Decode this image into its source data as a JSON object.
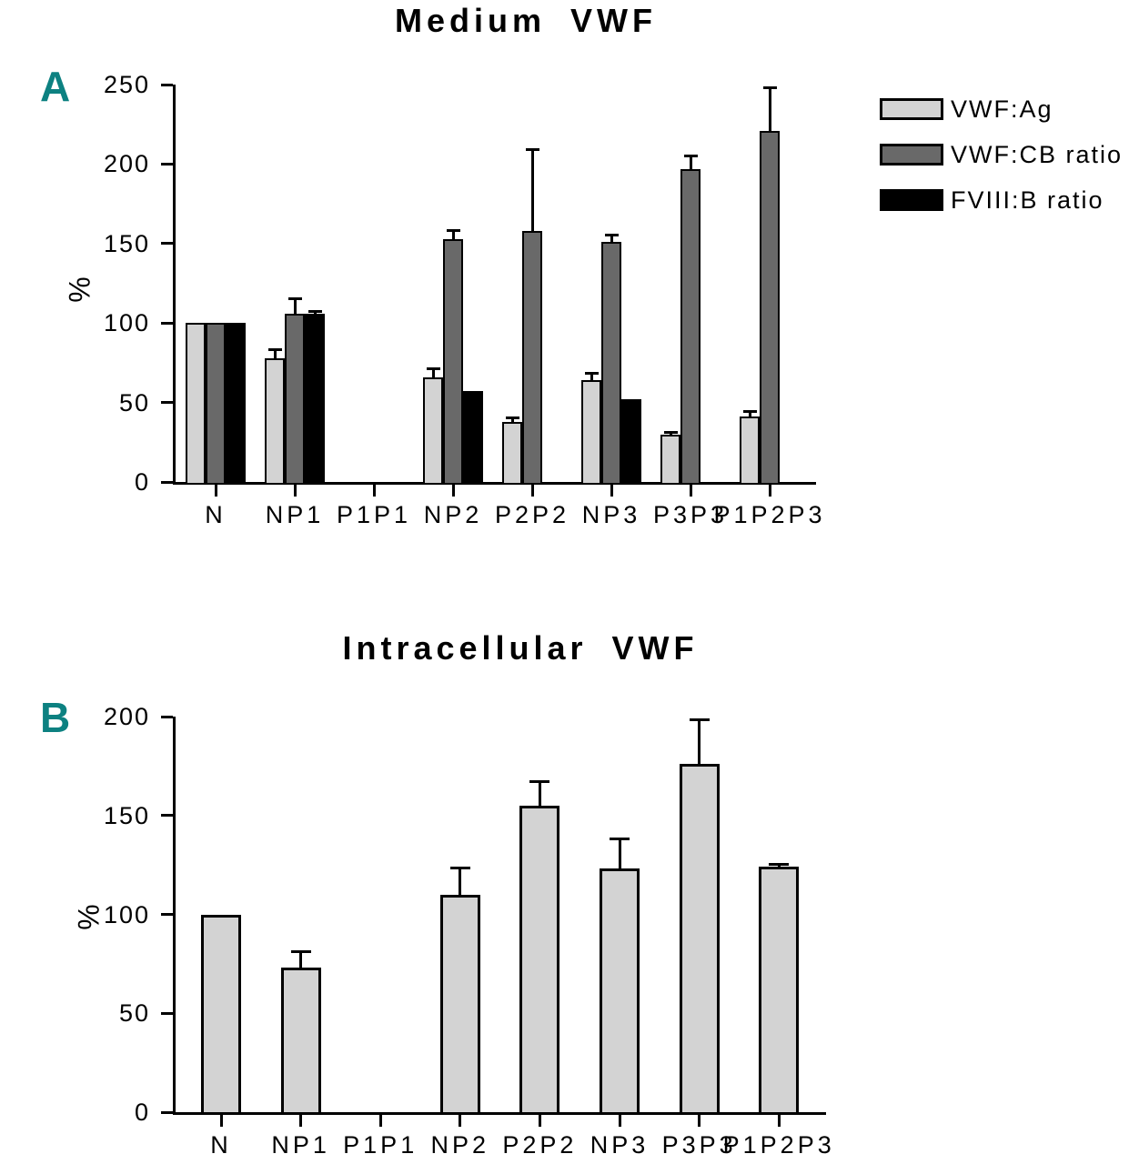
{
  "panels": [
    {
      "label": "A"
    },
    {
      "label": "B"
    }
  ],
  "colors": {
    "panel_letter_teal": "#0d8181",
    "bar_light_gray": "#d3d3d3",
    "bar_dark_gray": "#696969",
    "bar_black": "#000000",
    "axis_black": "#000000"
  },
  "chart_data": [
    {
      "type": "bar",
      "panel": "A",
      "title": "Medium VWF",
      "xlabel": "",
      "ylabel": "%",
      "ylim": [
        0,
        250
      ],
      "yticks": [
        0,
        50,
        100,
        150,
        200,
        250
      ],
      "grid": false,
      "legend_position": "right",
      "error_bars": "upper",
      "categories": [
        "N",
        "NP1",
        "P1P1",
        "NP2",
        "P2P2",
        "NP3",
        "P3P3",
        "P1P2P3"
      ],
      "series": [
        {
          "name": "VWF:Ag",
          "color": "#d3d3d3",
          "values": [
            100,
            78,
            null,
            66,
            38,
            64,
            30,
            41
          ],
          "errors": [
            0,
            6,
            0,
            6,
            3,
            5,
            2,
            4
          ]
        },
        {
          "name": "VWF:CB ratio",
          "color": "#696969",
          "values": [
            100,
            106,
            null,
            153,
            158,
            151,
            197,
            221
          ],
          "errors": [
            0,
            10,
            0,
            6,
            52,
            5,
            9,
            28
          ]
        },
        {
          "name": "FVIII:B ratio",
          "color": "#000000",
          "values": [
            100,
            106,
            null,
            57,
            null,
            52,
            null,
            null
          ],
          "errors": [
            0,
            2,
            0,
            0,
            0,
            0,
            0,
            0
          ]
        }
      ]
    },
    {
      "type": "bar",
      "panel": "B",
      "title": "Intracellular VWF",
      "xlabel": "",
      "ylabel": "%",
      "ylim": [
        0,
        200
      ],
      "yticks": [
        0,
        50,
        100,
        150,
        200
      ],
      "grid": false,
      "legend_position": "none",
      "error_bars": "upper",
      "categories": [
        "N",
        "NP1",
        "P1P1",
        "NP2",
        "P2P2",
        "NP3",
        "P3P3",
        "P1P2P3"
      ],
      "series": [
        {
          "name": "VWF:Ag",
          "color": "#d3d3d3",
          "values": [
            100,
            73,
            null,
            110,
            155,
            123,
            176,
            124
          ],
          "errors": [
            0,
            9,
            0,
            14,
            13,
            16,
            23,
            2
          ]
        }
      ]
    }
  ]
}
